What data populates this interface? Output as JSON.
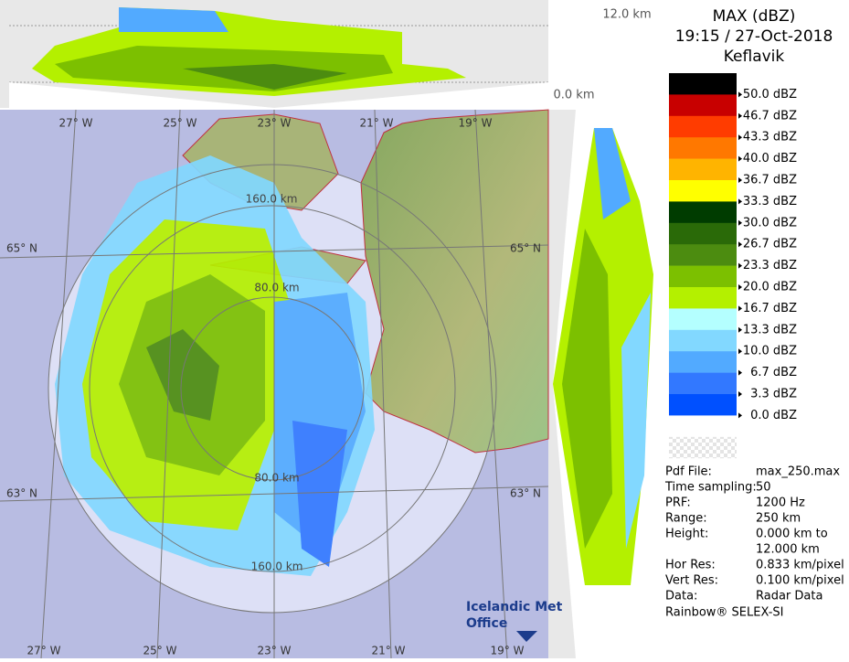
{
  "header": {
    "product": "MAX (dBZ)",
    "time": "19:15 / 27-Oct-2018",
    "site": "Keflavik"
  },
  "section": {
    "top": "12.0 km",
    "bottom": "0.0 km"
  },
  "legend": {
    "colors": [
      "#000000",
      "#c80000",
      "#ff3c00",
      "#ff7800",
      "#ffb400",
      "#ffff00",
      "#003c00",
      "#2a6a08",
      "#4c8c10",
      "#7cc000",
      "#b4f000",
      "#b4ffff",
      "#82d8ff",
      "#52aaff",
      "#3278ff",
      "#0050ff",
      "#ffffff"
    ],
    "labels": [
      "50.0 dBZ",
      "46.7 dBZ",
      "43.3 dBZ",
      "40.0 dBZ",
      "36.7 dBZ",
      "33.3 dBZ",
      "30.0 dBZ",
      "26.7 dBZ",
      "23.3 dBZ",
      "20.0 dBZ",
      "16.7 dBZ",
      "13.3 dBZ",
      "10.0 dBZ",
      "6.7 dBZ",
      "3.3 dBZ",
      "0.0 dBZ"
    ]
  },
  "info": {
    "rows": [
      {
        "label": "Pdf File:",
        "value": "max_250.max"
      },
      {
        "label": "Time sampling:",
        "value": "50"
      },
      {
        "label": "PRF:",
        "value": "1200 Hz"
      },
      {
        "label": "Range:",
        "value": "250 km"
      },
      {
        "label": "Height:",
        "value": [
          "0.000 km to",
          "12.000 km"
        ]
      },
      {
        "label": "Hor Res:",
        "value": "0.833 km/pixel"
      },
      {
        "label": "Vert Res:",
        "value": "0.100 km/pixel"
      },
      {
        "label": "Data:",
        "value": "Radar Data"
      }
    ]
  },
  "footer": "Rainbow® SELEX-SI",
  "map": {
    "lon_top": [
      "27° W",
      "25° W",
      "23° W",
      "21° W",
      "19° W"
    ],
    "lon_bottom": [
      "27° W",
      "25° W",
      "23° W",
      "21° W",
      "19° W"
    ],
    "lat_left": [
      "65° N",
      "63° N"
    ],
    "lat_right": [
      "65° N",
      "63° N"
    ],
    "ranges": [
      "160.0 km",
      "80.0 km",
      "80.0 km",
      "160.0 km"
    ]
  },
  "logo": [
    "Icelandic Met",
    "Office"
  ]
}
